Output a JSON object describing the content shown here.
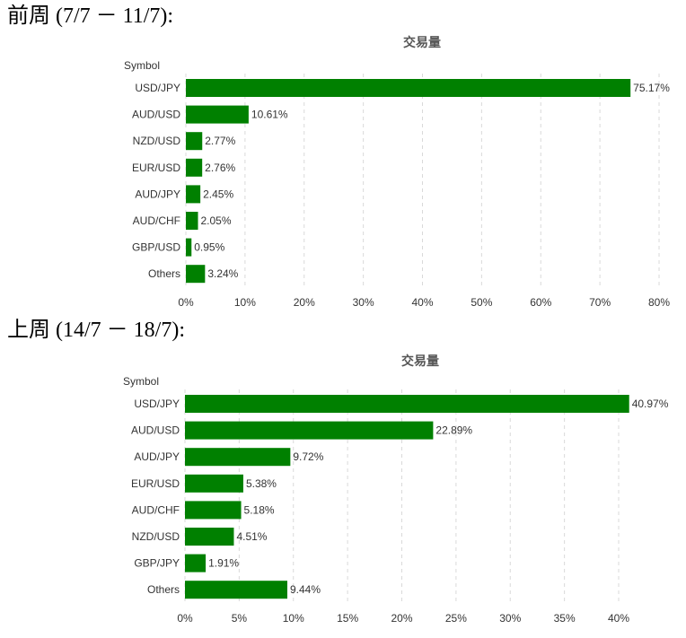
{
  "sections": [
    {
      "heading": "前周 (7/7 － 11/7):"
    },
    {
      "heading": "上周 (14/7 － 18/7):"
    }
  ],
  "chart_data": [
    {
      "type": "bar",
      "orientation": "horizontal",
      "title": "交易量",
      "ylabel": "Symbol",
      "categories": [
        "USD/JPY",
        "AUD/USD",
        "NZD/USD",
        "EUR/USD",
        "AUD/JPY",
        "AUD/CHF",
        "GBP/USD",
        "Others"
      ],
      "values": [
        75.17,
        10.61,
        2.77,
        2.76,
        2.45,
        2.05,
        0.95,
        3.24
      ],
      "data_labels": [
        "75.17%",
        "10.61%",
        "2.77%",
        "2.76%",
        "2.45%",
        "2.05%",
        "0.95%",
        "3.24%"
      ],
      "xlim": [
        0,
        80
      ],
      "xticks": [
        0,
        10,
        20,
        30,
        40,
        50,
        60,
        70,
        80
      ],
      "xtick_labels": [
        "0%",
        "10%",
        "20%",
        "30%",
        "40%",
        "50%",
        "60%",
        "70%",
        "80%"
      ],
      "grid": true,
      "bar_color": "#008000"
    },
    {
      "type": "bar",
      "orientation": "horizontal",
      "title": "交易量",
      "ylabel": "Symbol",
      "categories": [
        "USD/JPY",
        "AUD/USD",
        "AUD/JPY",
        "EUR/USD",
        "AUD/CHF",
        "NZD/USD",
        "GBP/JPY",
        "Others"
      ],
      "values": [
        40.97,
        22.89,
        9.72,
        5.38,
        5.18,
        4.51,
        1.91,
        9.44
      ],
      "data_labels": [
        "40.97%",
        "22.89%",
        "9.72%",
        "5.38%",
        "5.18%",
        "4.51%",
        "1.91%",
        "9.44%"
      ],
      "xlim": [
        0,
        40
      ],
      "xticks": [
        0,
        5,
        10,
        15,
        20,
        25,
        30,
        35,
        40
      ],
      "xtick_labels": [
        "0%",
        "5%",
        "10%",
        "15%",
        "20%",
        "25%",
        "30%",
        "35%",
        "40%"
      ],
      "grid": true,
      "bar_color": "#008000"
    }
  ]
}
